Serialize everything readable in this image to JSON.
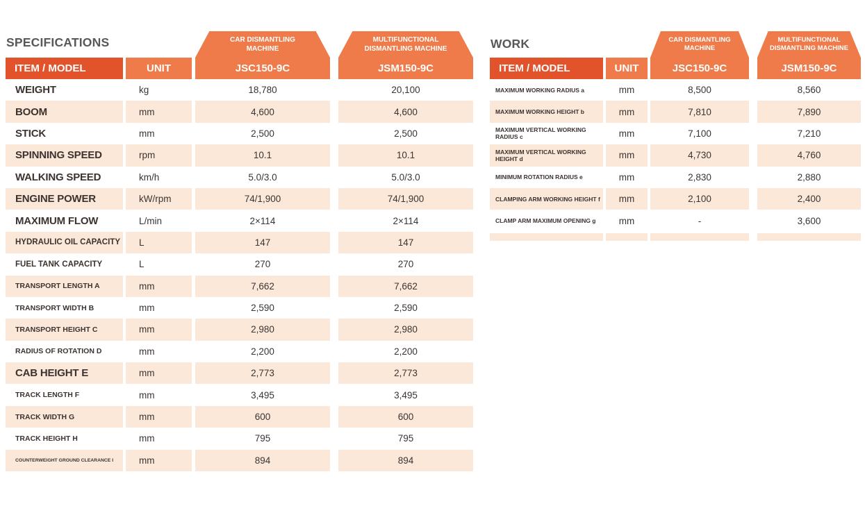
{
  "colors": {
    "header_dark_orange": "#e2532c",
    "header_light_orange": "#ee7b49",
    "row_peach": "#fce8d9",
    "title_gray": "#5a5757",
    "text_dark": "#3b3330"
  },
  "left_table": {
    "title": "SPECIFICATIONS",
    "tabs": [
      {
        "line1": "CAR DISMANTLING",
        "line2": "MACHINE"
      },
      {
        "line1": "MULTIFUNCTIONAL",
        "line2": "DISMANTLING MACHINE"
      }
    ],
    "headers": {
      "item": "ITEM / MODEL",
      "unit": "UNIT",
      "model1": "JSC150-9C",
      "model2": "JSM150-9C"
    },
    "rows": [
      {
        "item": "WEIGHT",
        "unit": "kg",
        "jsc": "18,780",
        "jsm": "20,100",
        "size": "lg"
      },
      {
        "item": "BOOM",
        "unit": "mm",
        "jsc": "4,600",
        "jsm": "4,600",
        "size": "lg"
      },
      {
        "item": "STICK",
        "unit": "mm",
        "jsc": "2,500",
        "jsm": "2,500",
        "size": "lg"
      },
      {
        "item": "SPINNING SPEED",
        "unit": "rpm",
        "jsc": "10.1",
        "jsm": "10.1",
        "size": "lg"
      },
      {
        "item": "WALKING SPEED",
        "unit": "km/h",
        "jsc": "5.0/3.0",
        "jsm": "5.0/3.0",
        "size": "lg"
      },
      {
        "item": "ENGINE POWER",
        "unit": "kW/rpm",
        "jsc": "74/1,900",
        "jsm": "74/1,900",
        "size": "lg"
      },
      {
        "item": "MAXIMUM FLOW",
        "unit": "L/min",
        "jsc": "2×114",
        "jsm": "2×114",
        "size": "lg"
      },
      {
        "item": "HYDRAULIC OIL CAPACITY",
        "unit": "L",
        "jsc": "147",
        "jsm": "147",
        "size": "md"
      },
      {
        "item": "FUEL TANK CAPACITY",
        "unit": "L",
        "jsc": "270",
        "jsm": "270",
        "size": "md"
      },
      {
        "item": "TRANSPORT LENGTH A",
        "unit": "mm",
        "jsc": "7,662",
        "jsm": "7,662",
        "size": "sm"
      },
      {
        "item": "TRANSPORT WIDTH B",
        "unit": "mm",
        "jsc": "2,590",
        "jsm": "2,590",
        "size": "sm"
      },
      {
        "item": "TRANSPORT HEIGHT C",
        "unit": "mm",
        "jsc": "2,980",
        "jsm": "2,980",
        "size": "sm"
      },
      {
        "item": "RADIUS OF ROTATION D",
        "unit": "mm",
        "jsc": "2,200",
        "jsm": "2,200",
        "size": "sm"
      },
      {
        "item": "CAB HEIGHT E",
        "unit": "mm",
        "jsc": "2,773",
        "jsm": "2,773",
        "size": "lg"
      },
      {
        "item": "TRACK LENGTH F",
        "unit": "mm",
        "jsc": "3,495",
        "jsm": "3,495",
        "size": "sm"
      },
      {
        "item": "TRACK WIDTH G",
        "unit": "mm",
        "jsc": "600",
        "jsm": "600",
        "size": "sm"
      },
      {
        "item": "TRACK HEIGHT H",
        "unit": "mm",
        "jsc": "795",
        "jsm": "795",
        "size": "sm"
      },
      {
        "item": "COUNTERWEIGHT GROUND CLEARANCE I",
        "unit": "mm",
        "jsc": "894",
        "jsm": "894",
        "size": "xs"
      }
    ]
  },
  "right_table": {
    "title": "WORK",
    "tabs": [
      {
        "line1": "CAR DISMANTLING",
        "line2": "MACHINE"
      },
      {
        "line1": "MULTIFUNCTIONAL",
        "line2": "DISMANTLING MACHINE"
      }
    ],
    "headers": {
      "item": "ITEM / MODEL",
      "unit": "UNIT",
      "model1": "JSC150-9C",
      "model2": "JSM150-9C"
    },
    "rows": [
      {
        "item": "MAXIMUM WORKING RADIUS a",
        "unit": "mm",
        "jsc": "8,500",
        "jsm": "8,560"
      },
      {
        "item": "MAXIMUM WORKING HEIGHT b",
        "unit": "mm",
        "jsc": "7,810",
        "jsm": "7,890"
      },
      {
        "item": "MAXIMUM VERTICAL WORKING RADIUS c",
        "unit": "mm",
        "jsc": "7,100",
        "jsm": "7,210"
      },
      {
        "item": "MAXIMUM VERTICAL WORKING HEIGHT d",
        "unit": "mm",
        "jsc": "4,730",
        "jsm": "4,760"
      },
      {
        "item": "MINIMUM ROTATION RADIUS e",
        "unit": "mm",
        "jsc": "2,830",
        "jsm": "2,880"
      },
      {
        "item": "CLAMPING ARM WORKING HEIGHT f",
        "unit": "mm",
        "jsc": "2,100",
        "jsm": "2,400"
      },
      {
        "item": "CLAMP ARM MAXIMUM OPENING g",
        "unit": "mm",
        "jsc": "-",
        "jsm": "3,600"
      }
    ]
  }
}
